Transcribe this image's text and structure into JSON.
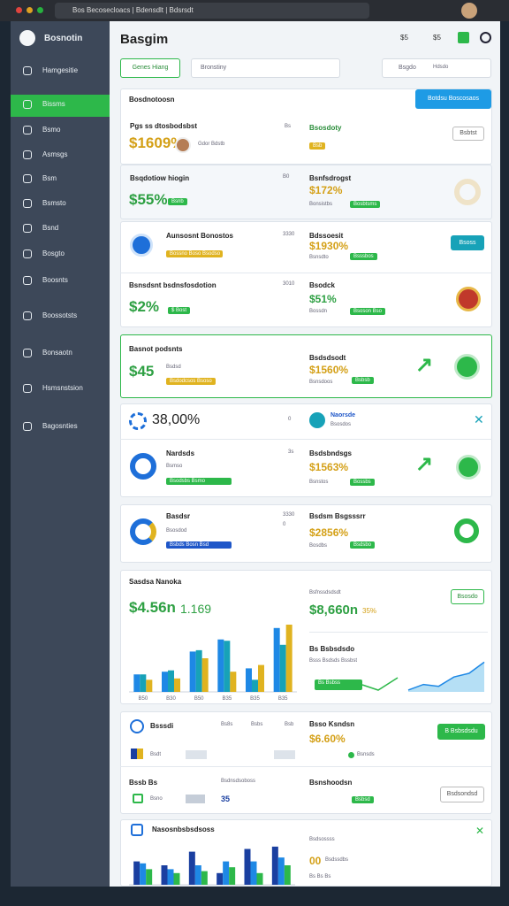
{
  "browser": {
    "url": "Bos Becosecloacs | Bdensdlt | Bdsrsdt"
  },
  "sidebar": {
    "brand": "Bosnotin",
    "items": [
      "Hamgesitie",
      "Bissms",
      "Bsmo",
      "Asmsgs",
      "Bsm",
      "Bsmsto",
      "Bsnd",
      "Bosgto",
      "Boosnts",
      "Boossotsts",
      "Bonsaotn",
      "Hsmsnstsion",
      "Bagosnties"
    ]
  },
  "header": {
    "title": "Basgim",
    "icon_labels": [
      "$5",
      "$5"
    ]
  },
  "filters": {
    "button": "Genes Hiang",
    "select": "Bronstiny",
    "search": "Bsgdo",
    "search_hint": "Hdsdo"
  },
  "cards": [
    {
      "title": "Bosdnotoosn",
      "action": "Botdsu Boscosaos",
      "label": "Pgs ss dtosbodsbst",
      "value": "$1609%",
      "sub": "Gdor Bdstb",
      "code": "Bs",
      "right_label": "Bsosdoty",
      "right_tag": "Bsb",
      "button": "Bsbtst"
    },
    {
      "label": "Bsqdotiow hiogin",
      "value": "$55%",
      "tag": "Bsnb",
      "code": "B0",
      "right_label": "Bsnfsdrogst",
      "right_value": "$172%",
      "right_sub": "Bonsistbs",
      "right_tag": "Bosbtsms"
    },
    {
      "label": "Aunsosnt Bonostos",
      "tag": "Bossno Boso Bsodso",
      "code": "3330",
      "right_label": "Bdssoesit",
      "right_value": "$1930%",
      "right_sub": "Bsnsdto",
      "right_tag": "Bsssbos",
      "button": "Bsoss"
    },
    {
      "label": "Bsnsdsnt bsdnsfosdotion",
      "value": "$2%",
      "tag": "$ Bost",
      "code": "3010",
      "right_label": "Bsodck",
      "right_value": "$51%",
      "right_sub": "Bossdn",
      "right_tag": "Bsoson Bso"
    },
    {
      "label": "Basnot podsnts",
      "value": "$45",
      "sub": "Bsdsd",
      "tag": "Bsdodcsos Bsoso",
      "right_label": "Bsdsdsodt",
      "right_value": "$1560%",
      "right_sub": "Bsnsdoos",
      "right_tag": "Bsbsb"
    },
    {
      "value": "38,00%",
      "code": "0",
      "badge_title": "Naorsde",
      "badge_sub": "Bsosdos",
      "label": "Nardsds",
      "sub": "Bsmso",
      "tag": "Bsodsbs Bsmo",
      "code2": "3s",
      "right_label": "Bsdsbndsgs",
      "right_value": "$1563%",
      "right_sub": "Bsnstos",
      "right_tag": "Bossbs"
    },
    {
      "label": "Basdsr",
      "sub": "Bsosdod",
      "tag": "Bsbds Bosn Bsd",
      "code": "3330",
      "code2": "0",
      "right_label": "Bsdsm Bsgsssrr",
      "right_value": "$2856%",
      "right_sub": "Bosdbs",
      "right_tag": "Bsdsbo"
    },
    {
      "title": "Sasdsa Nanoka",
      "value": "$4.56n",
      "value2": "1.169",
      "right_label": "Bsfnssdsdsdt",
      "right_value": "$8,660n",
      "right_pct": "35%",
      "button": "Bsosdo",
      "right_title": "Bs Bsbsdsdo",
      "right_sub": "Bsss Bsdsds Bssbst",
      "tag": "Bs Bsbss",
      "bars": {
        "type": "bar",
        "categories": [
          "B50",
          "B30",
          "B50",
          "B35",
          "B35",
          "B35"
        ],
        "ylim": [
          0,
          100
        ],
        "series": [
          {
            "color": "#1e88e5",
            "values": [
              26,
              30,
              60,
              78,
              35,
              95
            ]
          },
          {
            "color": "#17a2b8",
            "values": [
              26,
              32,
              62,
              76,
              18,
              70
            ]
          },
          {
            "color": "#e0b320",
            "values": [
              18,
              20,
              50,
              30,
              40,
              100
            ]
          }
        ]
      },
      "area": {
        "type": "area",
        "color": "#5bb8e8",
        "ylim": [
          0,
          100
        ],
        "values": [
          5,
          20,
          15,
          40,
          50,
          80
        ]
      }
    },
    {
      "label": "Bsssdi",
      "cols": [
        "Bs8s",
        "Bsbs",
        "Bsb"
      ],
      "flag_label": "Bsdt",
      "right_label": "Bsso Ksndsn",
      "right_value": "$6.60%",
      "right_sub": "Bsnsds",
      "button": "B Bsbsdsdu"
    },
    {
      "label": "Bssb Bs",
      "mid": "Bsdnsdsoboss",
      "sub": "Bsno",
      "code": "35",
      "right_label": "Bsnshoodsn",
      "right_tag": "Bsbsd",
      "button": "Bsdsondsd"
    },
    {
      "title": "Nasosnbsbsdsoss",
      "right_label": "Bsdsossss",
      "right_value": "00",
      "right_sub": "Bsdssdbs",
      "right_foot": "Bs Bs Bs",
      "bars": {
        "type": "bar",
        "ylim": [
          0,
          100
        ],
        "series": [
          {
            "color": "#1a3fa0",
            "values": [
              60,
              50,
              85,
              30,
              92,
              98
            ]
          },
          {
            "color": "#1e88e5",
            "values": [
              55,
              40,
              50,
              60,
              60,
              70
            ]
          },
          {
            "color": "#2db84a",
            "values": [
              40,
              30,
              35,
              45,
              30,
              50
            ]
          }
        ]
      }
    }
  ]
}
